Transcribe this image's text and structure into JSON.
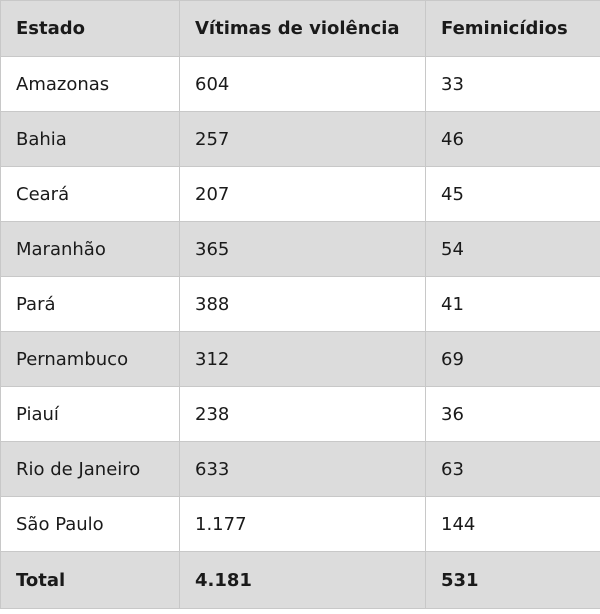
{
  "table": {
    "headers": [
      "Estado",
      "Vítimas de violência",
      "Feminicídios"
    ],
    "rows": [
      [
        "Amazonas",
        "604",
        "33"
      ],
      [
        "Bahia",
        "257",
        "46"
      ],
      [
        "Ceará",
        "207",
        "45"
      ],
      [
        "Maranhão",
        "365",
        "54"
      ],
      [
        "Pará",
        "388",
        "41"
      ],
      [
        "Pernambuco",
        "312",
        "69"
      ],
      [
        "Piauí",
        "238",
        "36"
      ],
      [
        "Rio de Janeiro",
        "633",
        "63"
      ],
      [
        "São Paulo",
        "1.177",
        "144"
      ]
    ],
    "total": [
      "Total",
      "4.181",
      "531"
    ]
  },
  "colors": {
    "shaded_row": "#dcdcdc",
    "plain_row": "#ffffff",
    "border": "#c8c8c8",
    "text": "#1a1a1a"
  }
}
